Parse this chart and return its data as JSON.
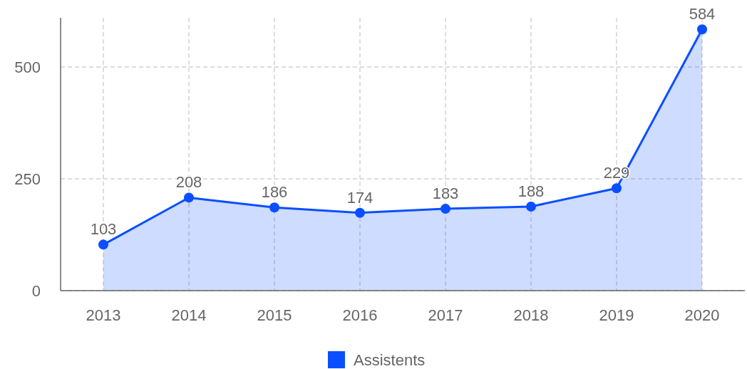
{
  "chart_data": {
    "type": "area",
    "categories": [
      "2013",
      "2014",
      "2015",
      "2016",
      "2017",
      "2018",
      "2019",
      "2020"
    ],
    "series": [
      {
        "name": "Assistents",
        "color": "#0a4fff",
        "values": [
          103,
          208,
          186,
          174,
          183,
          188,
          229,
          584
        ]
      }
    ],
    "ylim": [
      0,
      610
    ],
    "yticks": [
      0,
      250,
      500
    ],
    "grid": true,
    "legend": "bottom",
    "data_labels": true,
    "marker": "circle",
    "line_style": "solid"
  }
}
